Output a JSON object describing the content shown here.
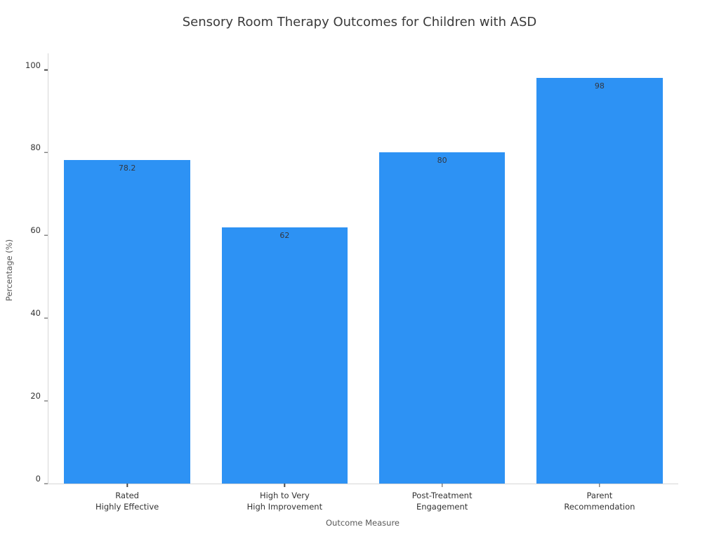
{
  "chart_data": {
    "type": "bar",
    "title": "Sensory Room Therapy Outcomes for Children with ASD",
    "xlabel": "Outcome Measure",
    "ylabel": "Percentage (%)",
    "categories": [
      "Rated\nHighly Effective",
      "High to Very\nHigh Improvement",
      "Post-Treatment\nEngagement",
      "Parent\nRecommendation"
    ],
    "values": [
      78.2,
      62,
      80,
      98
    ],
    "value_labels": [
      "78.2",
      "62",
      "80",
      "98"
    ],
    "yticks": [
      0,
      20,
      40,
      60,
      80,
      100
    ],
    "ytick_labels": [
      "0",
      "20",
      "40",
      "60",
      "80",
      "100"
    ],
    "ylim": [
      0,
      104
    ],
    "bar_color": "#2D92F4",
    "bar_width_fraction": 0.8,
    "grid": false,
    "legend": "none",
    "background_color": "#ffffff"
  }
}
